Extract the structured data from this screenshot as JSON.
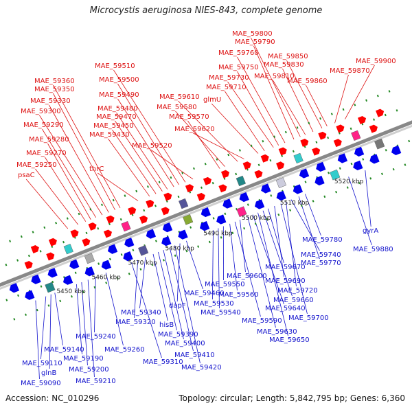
{
  "title": "Microcystis aeruginosa NIES-843, complete genome",
  "footer": {
    "accession": "Accession: NC_010296",
    "summary": "Topology: circular; Length: 5,842,795 bp; Genes: 6,360"
  },
  "colors": {
    "forward_label": "#dd1111",
    "reverse_label": "#1111cc",
    "forward_arrow": "#ff0000",
    "reverse_arrow": "#0000ee",
    "backbone": "#888888",
    "tick_mark": "#228822"
  },
  "scale_ticks": [
    "5450 kbp",
    "5460 kbp",
    "5470 kbp",
    "5480 kbp",
    "5490 kbp",
    "5500 kbp",
    "5510 kbp",
    "5520 kbp"
  ],
  "forward_genes": [
    "psaC",
    "MAE_59250",
    "MAE_59270",
    "MAE_59280",
    "MAE_59290",
    "MAE_59300",
    "MAE_59330",
    "MAE_59350",
    "MAE_59360",
    "thrC",
    "MAE_59430",
    "MAE_59450",
    "MAE_59470",
    "MAE_59480",
    "MAE_59490",
    "MAE_59500",
    "MAE_59510",
    "MAE_59520",
    "MAE_59570",
    "MAE_59580",
    "MAE_59610",
    "MAE_59620",
    "glmU",
    "MAE_59710",
    "MAE_59730",
    "MAE_59750",
    "MAE_59760",
    "MAE_59790",
    "MAE_59800",
    "MAE_59810",
    "MAE_59830",
    "MAE_59850",
    "MAE_59860",
    "MAE_59870",
    "MAE_59900"
  ],
  "reverse_genes": [
    "MAE_59090",
    "MAE_59110",
    "glnB",
    "MAE_59140",
    "MAE_59190",
    "MAE_59200",
    "MAE_59210",
    "MAE_59240",
    "MAE_59260",
    "MAE_59310",
    "MAE_59320",
    "MAE_59340",
    "hisB",
    "MAE_59390",
    "MAE_59400",
    "MAE_59410",
    "MAE_59420",
    "dapF",
    "MAE_59460",
    "MAE_59530",
    "MAE_59540",
    "MAE_59550",
    "MAE_59560",
    "MAE_59590",
    "MAE_59600",
    "MAE_59630",
    "MAE_59640",
    "MAE_59650",
    "MAE_59660",
    "MAE_59670",
    "MAE_59690",
    "MAE_59700",
    "MAE_59720",
    "MAE_59740",
    "MAE_59770",
    "MAE_59780",
    "MAE_59880",
    "gyrA"
  ]
}
